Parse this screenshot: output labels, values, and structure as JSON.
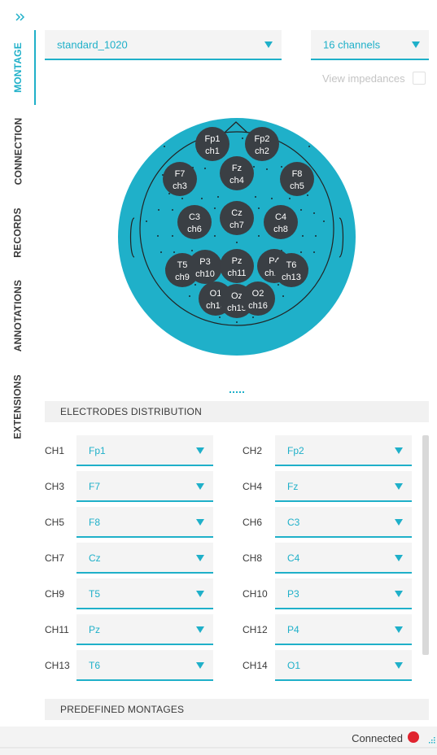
{
  "colors": {
    "accent": "#1fb0c9",
    "electrode": "#3a3f44",
    "status_disconnected": "#e0242f"
  },
  "sidebar": {
    "expand_icon": "double-chevron-right-icon",
    "tabs": [
      {
        "label": "MONTAGE",
        "active": true
      },
      {
        "label": "CONNECTION",
        "active": false
      },
      {
        "label": "RECORDS",
        "active": false
      },
      {
        "label": "ANNOTATIONS",
        "active": false
      },
      {
        "label": "EXTENSIONS",
        "active": false
      }
    ]
  },
  "montage": {
    "montage_select": "standard_1020",
    "channels_select": "16 channels",
    "view_impedances_label": "View impedances",
    "view_impedances_checked": false
  },
  "electrodes": [
    {
      "name": "Fp1",
      "channel": "ch1"
    },
    {
      "name": "Fp2",
      "channel": "ch2"
    },
    {
      "name": "F7",
      "channel": "ch3"
    },
    {
      "name": "Fz",
      "channel": "ch4"
    },
    {
      "name": "F8",
      "channel": "ch5"
    },
    {
      "name": "C3",
      "channel": "ch6"
    },
    {
      "name": "Cz",
      "channel": "ch7"
    },
    {
      "name": "C4",
      "channel": "ch8"
    },
    {
      "name": "T5",
      "channel": "ch9"
    },
    {
      "name": "P3",
      "channel": "ch10"
    },
    {
      "name": "Pz",
      "channel": "ch11"
    },
    {
      "name": "P4",
      "channel": "ch12"
    },
    {
      "name": "T6",
      "channel": "ch13"
    },
    {
      "name": "O1",
      "channel": "ch14"
    },
    {
      "name": "Oz",
      "channel": "ch15"
    },
    {
      "name": "O2",
      "channel": "ch16"
    }
  ],
  "distribution": {
    "header": "ELECTRODES DISTRIBUTION",
    "rows": [
      {
        "left_label": "CH1",
        "left_value": "Fp1",
        "right_label": "CH2",
        "right_value": "Fp2"
      },
      {
        "left_label": "CH3",
        "left_value": "F7",
        "right_label": "CH4",
        "right_value": "Fz"
      },
      {
        "left_label": "CH5",
        "left_value": "F8",
        "right_label": "CH6",
        "right_value": "C3"
      },
      {
        "left_label": "CH7",
        "left_value": "Cz",
        "right_label": "CH8",
        "right_value": "C4"
      },
      {
        "left_label": "CH9",
        "left_value": "T5",
        "right_label": "CH10",
        "right_value": "P3"
      },
      {
        "left_label": "CH11",
        "left_value": "Pz",
        "right_label": "CH12",
        "right_value": "P4"
      },
      {
        "left_label": "CH13",
        "left_value": "T6",
        "right_label": "CH14",
        "right_value": "O1"
      }
    ]
  },
  "predefined": {
    "header": "PREDEFINED MONTAGES"
  },
  "status": {
    "text": "Connected"
  }
}
